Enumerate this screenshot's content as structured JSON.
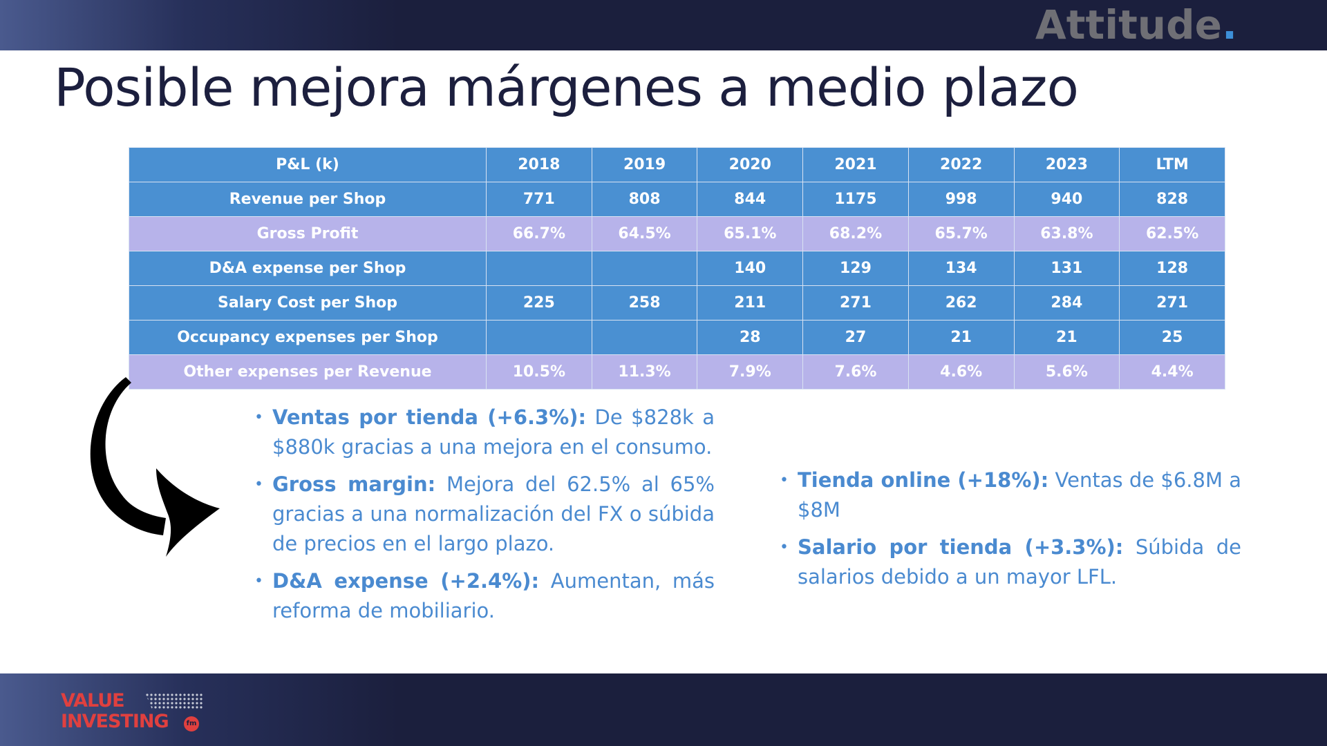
{
  "header": {
    "brand": "Attitude",
    "brand_dot": "."
  },
  "title": "Posible mejora márgenes a medio plazo",
  "table": {
    "headers": [
      "P&L (k)",
      "2018",
      "2019",
      "2020",
      "2021",
      "2022",
      "2023",
      "LTM"
    ],
    "rows": [
      {
        "label": "Revenue per Shop",
        "values": [
          "771",
          "808",
          "844",
          "1175",
          "998",
          "940",
          "828"
        ]
      },
      {
        "label": "Gross Profit",
        "values": [
          "66.7%",
          "64.5%",
          "65.1%",
          "68.2%",
          "65.7%",
          "63.8%",
          "62.5%"
        ]
      },
      {
        "label": "D&A expense per Shop",
        "values": [
          "",
          "",
          "140",
          "129",
          "134",
          "131",
          "128"
        ]
      },
      {
        "label": "Salary Cost per Shop",
        "values": [
          "225",
          "258",
          "211",
          "271",
          "262",
          "284",
          "271"
        ]
      },
      {
        "label": "Occupancy expenses per Shop",
        "values": [
          "",
          "",
          "28",
          "27",
          "21",
          "21",
          "25"
        ]
      },
      {
        "label": "Other expenses per Revenue",
        "values": [
          "10.5%",
          "11.3%",
          "7.9%",
          "7.6%",
          "4.6%",
          "5.6%",
          "4.4%"
        ]
      }
    ]
  },
  "bullets_left": [
    {
      "lead": "Ventas por tienda (+6.3%):",
      "text": " De $828k a $880k gracias a una mejora en el consumo."
    },
    {
      "lead": "Gross margin:",
      "text": " Mejora del 62.5% al 65% gracias a una normalización del FX o súbida de precios en el largo plazo."
    },
    {
      "lead": "D&A expense (+2.4%):",
      "text": " Aumentan, más reforma de mobiliario."
    }
  ],
  "bullets_right": [
    {
      "lead": "Tienda online (+18%):",
      "text": " Ventas de $6.8M a $8M"
    },
    {
      "lead": "Salario por tienda (+3.3%):",
      "text": " Súbida de salarios debido a un mayor LFL."
    }
  ],
  "footer_logo": {
    "line1": "VALUE",
    "line2": "INVESTING",
    "badge": "fm"
  },
  "colors": {
    "header_bg": "#1b1f3d",
    "title": "#1c1f3e",
    "table_blue": "#4a90d2",
    "table_lilac": "#b7b3ea",
    "bullet_text": "#4a8ad0",
    "brand_dot": "#3d8fd8",
    "logo_red": "#e0403f"
  }
}
